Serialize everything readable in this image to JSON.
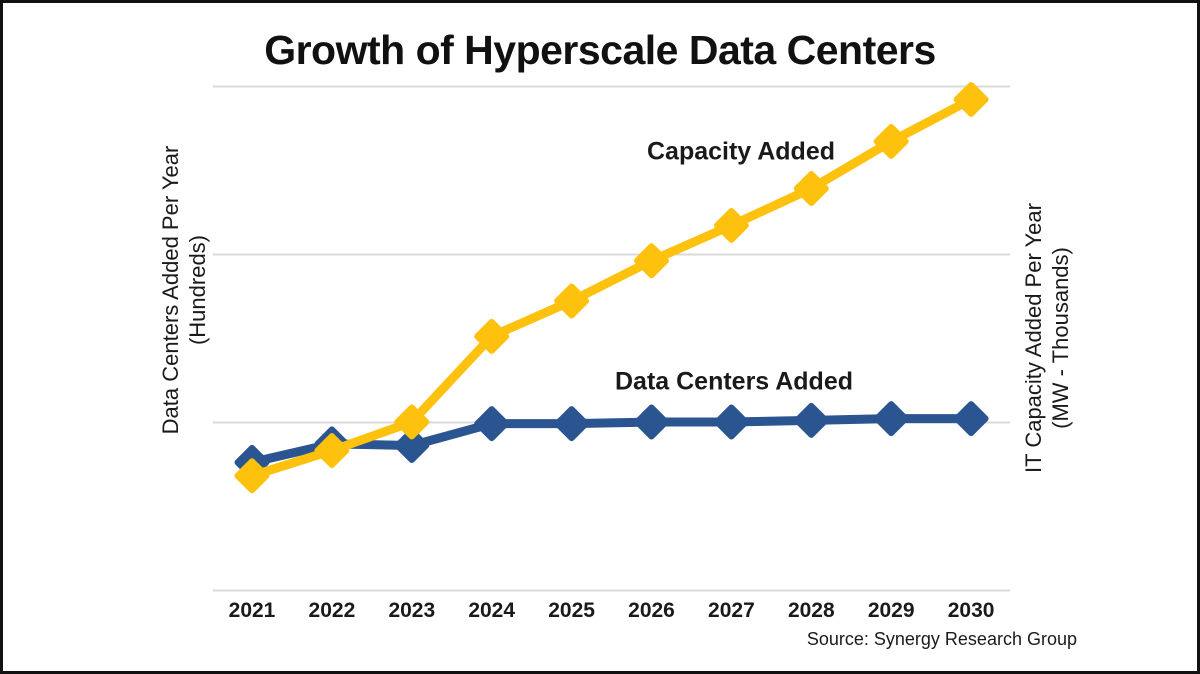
{
  "page": {
    "title": "Growth of Hyperscale Data Centers",
    "source": "Source: Synergy Research Group"
  },
  "axes": {
    "left": {
      "line1": "Data Centers Added Per Year",
      "line2": "(Hundreds)"
    },
    "right": {
      "line1": "IT Capacity Added Per Year",
      "line2": "(MW - Thousands)"
    }
  },
  "colors": {
    "capacity_line": "#FDC10E",
    "data_centers_line": "#2B5591",
    "gridline": "#D9D9D9",
    "text": "#1A1A1A"
  },
  "chart_data": {
    "type": "line",
    "title": "Growth of Hyperscale Data Centers",
    "categories": [
      "2021",
      "2022",
      "2023",
      "2024",
      "2025",
      "2026",
      "2027",
      "2028",
      "2029",
      "2030"
    ],
    "series": [
      {
        "name": "Data Centers Added",
        "axis": "left",
        "color": "#2B5591",
        "values": [
          0.76,
          0.87,
          0.86,
          0.99,
          0.99,
          1.0,
          1.0,
          1.01,
          1.02,
          1.02
        ]
      },
      {
        "name": "Capacity Added",
        "axis": "right",
        "color": "#FDC10E",
        "values": [
          0.68,
          0.83,
          1.0,
          1.51,
          1.72,
          1.96,
          2.17,
          2.39,
          2.67,
          2.92
        ]
      }
    ],
    "ylabel_left": "Data Centers Added Per Year (Hundreds)",
    "ylabel_right": "IT Capacity Added Per Year (MW - Thousands)",
    "ylim": [
      0,
      3
    ],
    "gridline_step": 1,
    "grid": true,
    "legend_position": "inline-labels",
    "xlabel": "",
    "marker": "diamond",
    "source": "Source: Synergy Research Group"
  }
}
